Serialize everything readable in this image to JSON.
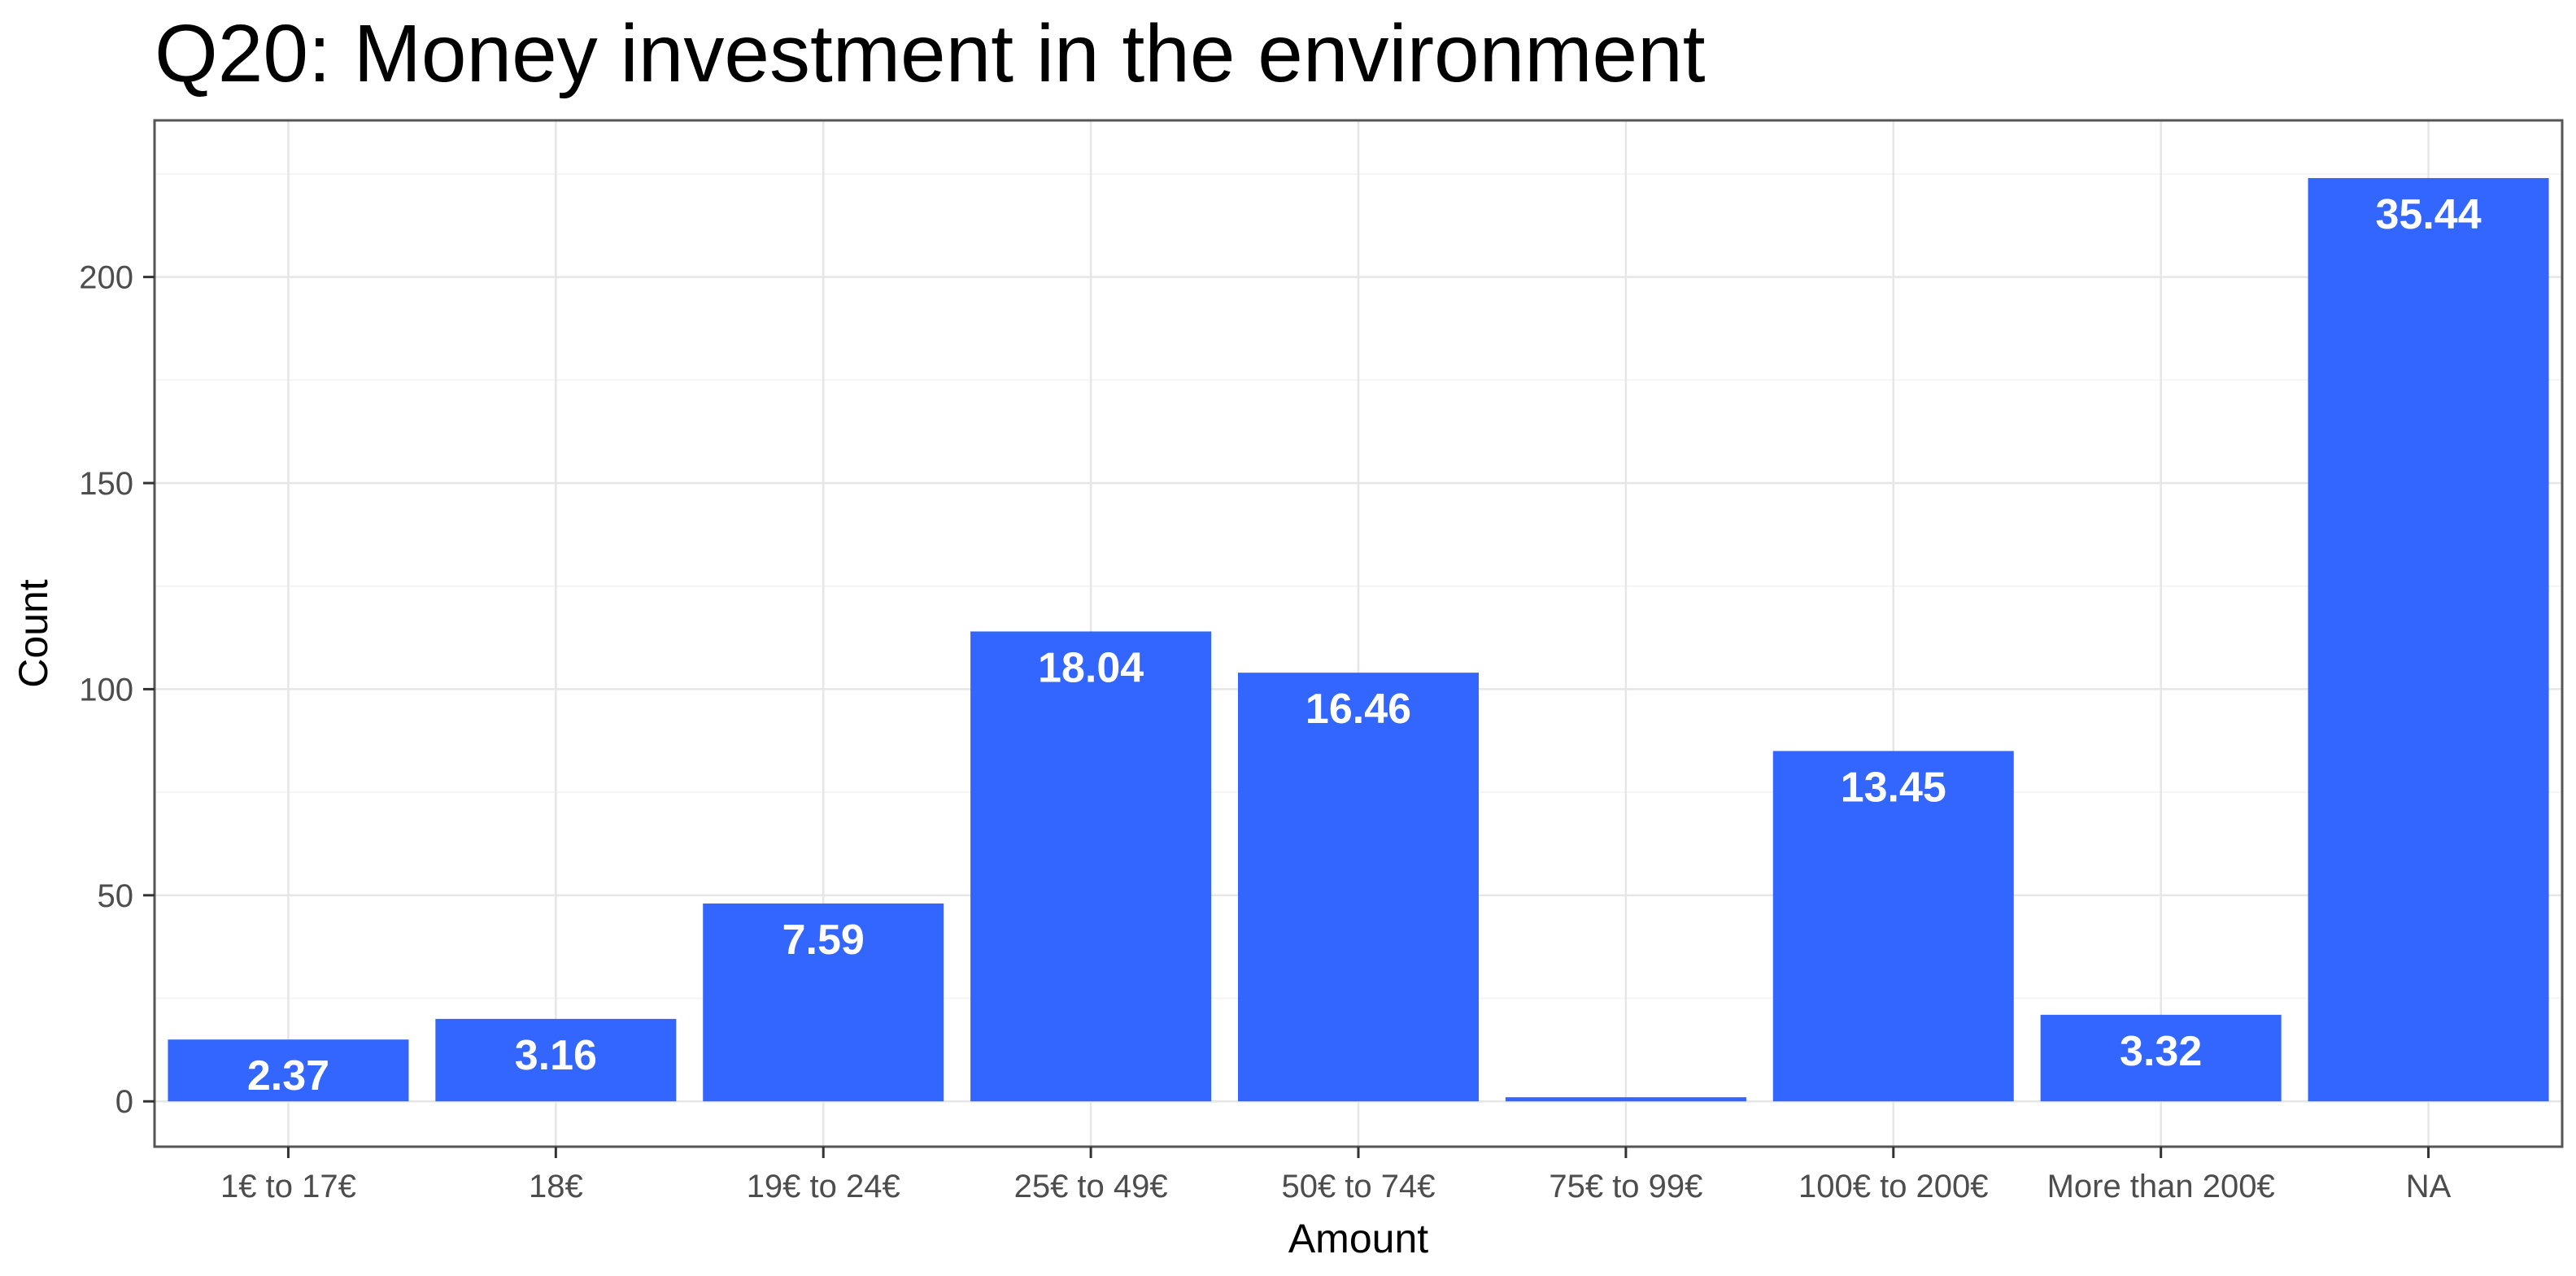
{
  "chart_data": {
    "type": "bar",
    "title": "Q20: Money investment in the environment",
    "xlabel": "Amount",
    "ylabel": "Count",
    "categories": [
      "1€ to 17€",
      "18€",
      "19€ to 24€",
      "25€ to 49€",
      "50€ to 74€",
      "75€ to 99€",
      "100€ to 200€",
      "More than 200€",
      "NA"
    ],
    "values": [
      15,
      20,
      48,
      114,
      104,
      1,
      85,
      21,
      224
    ],
    "data_labels": [
      "2.37",
      "3.16",
      "7.59",
      "18.04",
      "16.46",
      "",
      "13.45",
      "3.32",
      "35.44"
    ],
    "y_ticks": [
      0,
      50,
      100,
      150,
      200
    ],
    "ylim": [
      -11,
      238
    ],
    "grid": true,
    "legend": "none",
    "bar_color": "#3366FF"
  }
}
